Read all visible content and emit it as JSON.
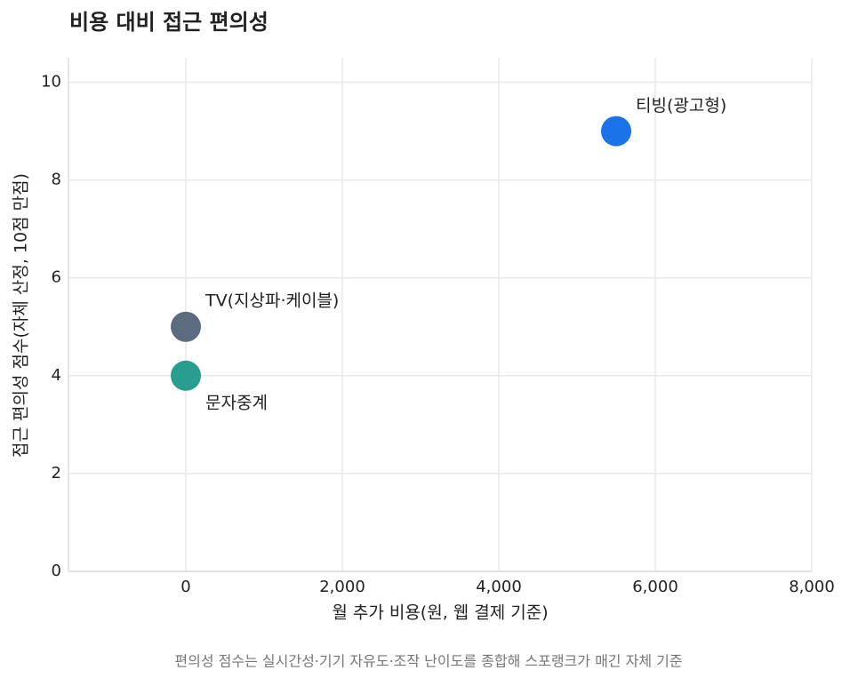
{
  "chart_data": {
    "type": "scatter",
    "title": "비용 대비 접근 편의성",
    "x_label": "월 추가 비용(원, 웹 결제 기준)",
    "y_label": "접근 편의성 점수(자체 산정, 10점 만점)",
    "caption": "편의성 점수는 실시간성·기기 자유도·조작 난이도를 종합해 스포랭크가 매긴 자체 기준",
    "series": [
      {
        "name": "TV(지상파·케이블)",
        "color": "#5d6b7e",
        "x": [
          0
        ],
        "values": [
          5
        ]
      },
      {
        "name": "문자중계",
        "color": "#2a9d8f",
        "x": [
          0
        ],
        "values": [
          4
        ]
      },
      {
        "name": "티빙(광고형)",
        "color": "#1a73e8",
        "x": [
          5500
        ],
        "values": [
          9
        ]
      }
    ],
    "xlim": [
      -1500,
      8000
    ],
    "xticks": [
      0,
      {
        "value": 2000,
        "label": "2,000"
      },
      {
        "value": 4000,
        "label": "4,000"
      },
      {
        "value": 6000,
        "label": "6,000"
      },
      {
        "value": 8000,
        "label": "8,000"
      }
    ],
    "ylim": [
      0,
      10.5
    ],
    "yticks": [
      0,
      2,
      4,
      6,
      8,
      10
    ],
    "grid": true
  }
}
